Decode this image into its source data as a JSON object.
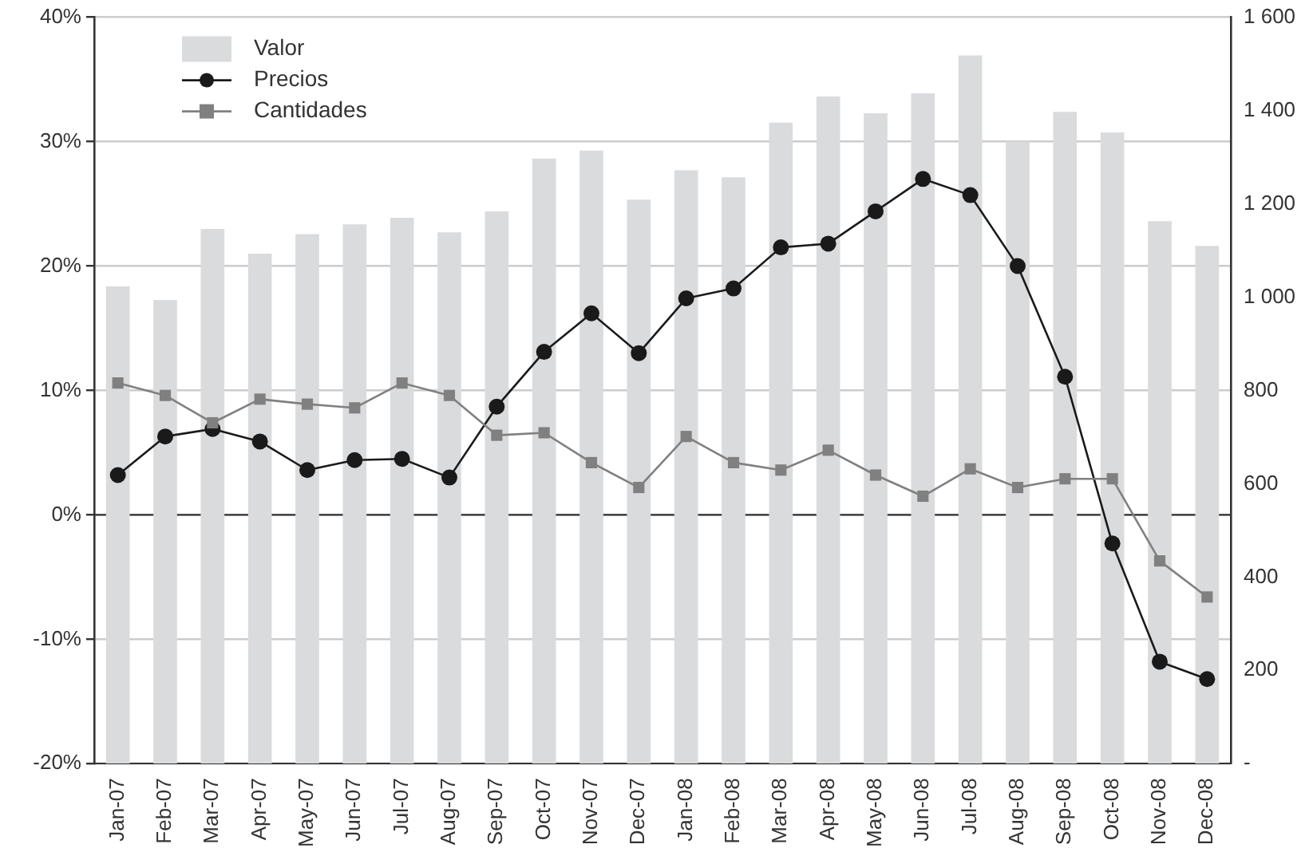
{
  "chart_data": {
    "type": "line",
    "categories": [
      "Jan-07",
      "Feb-07",
      "Mar-07",
      "Apr-07",
      "May-07",
      "Jun-07",
      "Jul-07",
      "Aug-07",
      "Sep-07",
      "Oct-07",
      "Nov-07",
      "Dec-07",
      "Jan-08",
      "Feb-08",
      "Mar-08",
      "Apr-08",
      "May-08",
      "Jun-08",
      "Jul-08",
      "Aug-08",
      "Sep-08",
      "Oct-08",
      "Nov-08",
      "Dec-08"
    ],
    "series": [
      {
        "name": "Valor",
        "type": "bar",
        "axis": "y2",
        "color": "#dadbdd",
        "values": [
          1023,
          994,
          1146,
          1093,
          1135,
          1156,
          1170,
          1139,
          1184,
          1297,
          1314,
          1209,
          1272,
          1257,
          1374,
          1430,
          1394,
          1437,
          1518,
          1334,
          1397,
          1353,
          1163,
          1110
        ]
      },
      {
        "name": "Precios",
        "color": "#1a1a1a",
        "marker": "circle",
        "values": [
          3.2,
          6.3,
          6.9,
          5.9,
          3.6,
          4.4,
          4.5,
          3.0,
          8.7,
          13.1,
          16.2,
          13.0,
          17.4,
          18.2,
          21.5,
          21.8,
          24.4,
          27.0,
          25.7,
          20.0,
          11.1,
          -2.3,
          -11.8,
          -13.2
        ]
      },
      {
        "name": "Cantidades",
        "color": "#808080",
        "marker": "square",
        "values": [
          10.6,
          9.6,
          7.4,
          9.3,
          8.9,
          8.6,
          10.6,
          9.6,
          6.4,
          6.6,
          4.2,
          2.2,
          6.3,
          4.2,
          3.6,
          5.2,
          3.2,
          1.5,
          3.7,
          2.2,
          2.9,
          2.9,
          -3.7,
          -6.6
        ]
      }
    ],
    "ylim": [
      -20,
      40
    ],
    "yticks": [
      {
        "value": -20,
        "label": "-20%"
      },
      {
        "value": -10,
        "label": "-10%"
      },
      {
        "value": 0,
        "label": "0%"
      },
      {
        "value": 10,
        "label": "10%"
      },
      {
        "value": 20,
        "label": "20%"
      },
      {
        "value": 30,
        "label": "30%"
      },
      {
        "value": 40,
        "label": "40%"
      }
    ],
    "y2lim": [
      0,
      1600
    ],
    "y2ticks": [
      {
        "value": 0,
        "label": "-"
      },
      200,
      400,
      600,
      800,
      {
        "value": 1000,
        "label": "1 000"
      },
      {
        "value": 1200,
        "label": "1 200"
      },
      {
        "value": 1400,
        "label": "1 400"
      },
      {
        "value": 1600,
        "label": "1 600"
      }
    ],
    "ref_lines": [
      {
        "axis": "y",
        "value": 0,
        "color": "#333333"
      }
    ],
    "grid": "y",
    "legend": "top left",
    "line_style": "solid"
  }
}
